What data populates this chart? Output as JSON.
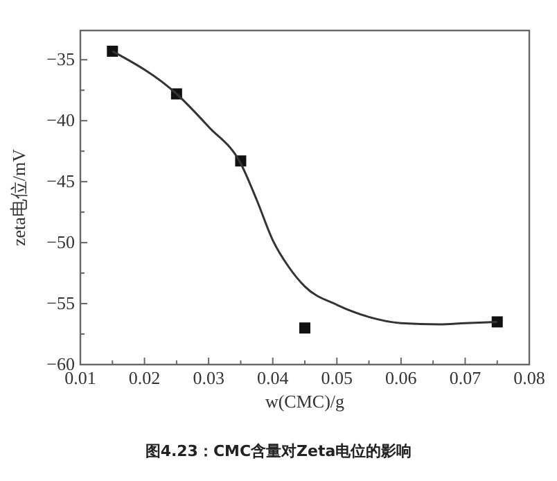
{
  "chart_data": {
    "type": "scatter",
    "xlabel": "w(CMC)/g",
    "ylabel": "zeta电位/mV",
    "annotations": [
      "图4.23：CMC含量对Zeta电位的影响"
    ],
    "xlim": [
      0.01,
      0.08
    ],
    "xticks": [
      0.01,
      {
        "value": 0.015,
        "label": null
      },
      0.02,
      {
        "value": 0.025,
        "label": null
      },
      0.03,
      {
        "value": 0.035,
        "label": null
      },
      0.04,
      {
        "value": 0.045,
        "label": null
      },
      0.05,
      {
        "value": 0.055,
        "label": null
      },
      0.06,
      {
        "value": 0.065,
        "label": null
      },
      0.07,
      {
        "value": 0.075,
        "label": null
      },
      0.08
    ],
    "ylim": [
      -60,
      -32.6
    ],
    "yticks": [
      {
        "value": -60,
        "label": "−60"
      },
      {
        "value": -57.5,
        "label": null
      },
      {
        "value": -55,
        "label": "−55"
      },
      {
        "value": -52.5,
        "label": null
      },
      {
        "value": -50,
        "label": "−50"
      },
      {
        "value": -47.5,
        "label": null
      },
      {
        "value": -45,
        "label": "−45"
      },
      {
        "value": -42.5,
        "label": null
      },
      {
        "value": -40,
        "label": "−40"
      },
      {
        "value": -37.5,
        "label": null
      },
      {
        "value": -35,
        "label": "−35"
      }
    ],
    "grid": false,
    "series": [
      {
        "marker": "square",
        "color": "#111111",
        "x": [
          0.015,
          0.025,
          0.035,
          0.045,
          0.075
        ],
        "values": [
          -34.3,
          -37.8,
          -43.3,
          -57.0,
          -56.5
        ]
      },
      {
        "type": "line",
        "marker": "none",
        "line_style": "solid",
        "color": "#333333",
        "x": [
          0.015,
          0.025,
          0.03,
          0.035,
          0.0375,
          0.04,
          0.0425,
          0.045,
          0.05,
          0.055,
          0.06,
          0.066,
          0.07,
          0.075
        ],
        "values": [
          -34.3,
          -37.8,
          -40.5,
          -43.5,
          -46.5,
          -49.8,
          -52.0,
          -53.6,
          -55.1,
          -56.1,
          -56.6,
          -56.7,
          -56.6,
          -56.5
        ]
      }
    ]
  }
}
